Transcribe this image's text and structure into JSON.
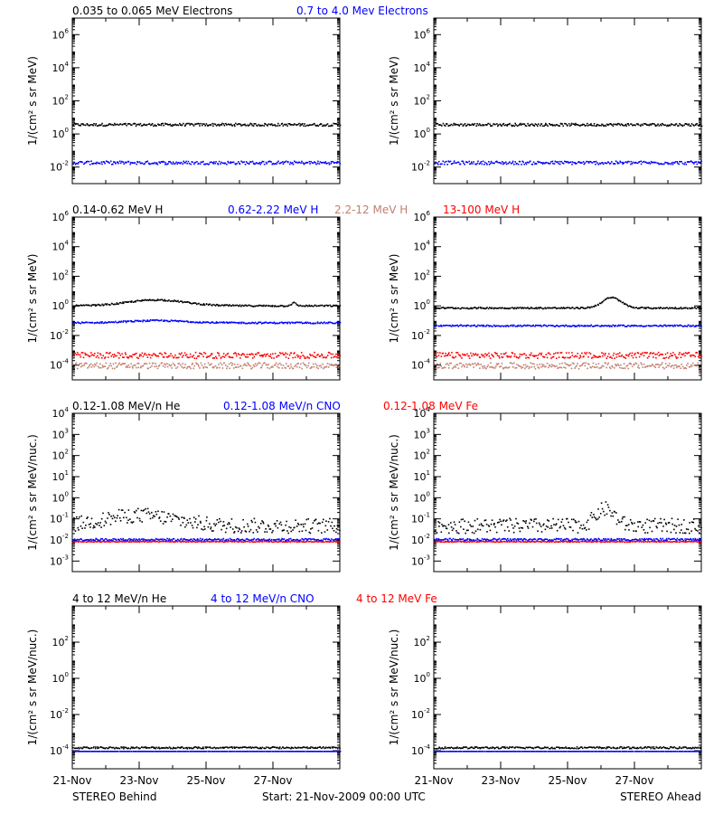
{
  "chart_data": [
    {
      "type": "scatter",
      "panel": "electrons-behind",
      "ylabel": "1/(cm² s sr MeV)",
      "yscale": "log",
      "ylim_exp": [
        -3,
        7
      ],
      "yticks_exp": [
        -2,
        0,
        2,
        4,
        6
      ],
      "legend": [
        {
          "text": "0.035 to 0.065 MeV Electrons",
          "color": "#000000"
        },
        {
          "text": "0.7 to 4.0 Mev Electrons",
          "color": "#0000ff"
        }
      ],
      "series": [
        {
          "color": "#000000",
          "base_exp": 0.6,
          "spread": 0.08,
          "bumps": []
        },
        {
          "color": "#0000ff",
          "base_exp": -1.7,
          "spread": 0.1,
          "bumps": []
        }
      ]
    },
    {
      "type": "scatter",
      "panel": "electrons-ahead",
      "ylabel": "1/(cm² s sr MeV)",
      "yscale": "log",
      "ylim_exp": [
        -3,
        7
      ],
      "yticks_exp": [
        -2,
        0,
        2,
        4,
        6
      ],
      "legend": [],
      "series": [
        {
          "color": "#000000",
          "base_exp": 0.6,
          "spread": 0.08,
          "bumps": []
        },
        {
          "color": "#0000ff",
          "base_exp": -1.7,
          "spread": 0.1,
          "bumps": []
        }
      ]
    },
    {
      "type": "scatter",
      "panel": "protons-behind",
      "ylabel": "1/(cm² s sr MeV)",
      "yscale": "log",
      "ylim_exp": [
        -5,
        6
      ],
      "yticks_exp": [
        -4,
        -2,
        0,
        2,
        4,
        6
      ],
      "legend": [
        {
          "text": "0.14-0.62 MeV H",
          "color": "#000000"
        },
        {
          "text": "0.62-2.22 MeV H",
          "color": "#0000ff"
        },
        {
          "text": "2.2-12 MeV H",
          "color": "#c08070"
        },
        {
          "text": "13-100 MeV H",
          "color": "#ff0000"
        }
      ],
      "series": [
        {
          "color": "#000000",
          "base_exp": 0.05,
          "spread": 0.05,
          "bumps": [
            {
              "day": 2.5,
              "width": 1.2,
              "amp": 0.4
            },
            {
              "day": 6.6,
              "width": 0.1,
              "amp": 0.2
            }
          ]
        },
        {
          "color": "#0000ff",
          "base_exp": -1.1,
          "spread": 0.05,
          "bumps": [
            {
              "day": 2.5,
              "width": 1.2,
              "amp": 0.15
            }
          ]
        },
        {
          "color": "#c08070",
          "base_exp": -4.0,
          "spread": 0.2,
          "bumps": []
        },
        {
          "color": "#ff0000",
          "base_exp": -3.3,
          "spread": 0.2,
          "bumps": []
        }
      ]
    },
    {
      "type": "scatter",
      "panel": "protons-ahead",
      "ylabel": "1/(cm² s sr MeV)",
      "yscale": "log",
      "ylim_exp": [
        -5,
        6
      ],
      "yticks_exp": [
        -4,
        -2,
        0,
        2,
        4,
        6
      ],
      "legend": [],
      "series": [
        {
          "color": "#000000",
          "base_exp": -0.1,
          "spread": 0.05,
          "bumps": [
            {
              "day": 5.3,
              "width": 0.4,
              "amp": 0.7
            }
          ]
        },
        {
          "color": "#0000ff",
          "base_exp": -1.3,
          "spread": 0.05,
          "bumps": []
        },
        {
          "color": "#c08070",
          "base_exp": -4.0,
          "spread": 0.2,
          "bumps": []
        },
        {
          "color": "#ff0000",
          "base_exp": -3.3,
          "spread": 0.2,
          "bumps": []
        }
      ]
    },
    {
      "type": "scatter",
      "panel": "heavy-behind",
      "ylabel": "1/(cm² s sr MeV/nuc.)",
      "yscale": "log",
      "ylim_exp": [
        -3.5,
        4
      ],
      "yticks_exp": [
        -3,
        -2,
        -1,
        0,
        1,
        2,
        3,
        4
      ],
      "legend": [
        {
          "text": "0.12-1.08 MeV/n He",
          "color": "#000000"
        },
        {
          "text": "0.12-1.08 MeV/n CNO",
          "color": "#0000ff"
        },
        {
          "text": "0.12-1.08 MeV Fe",
          "color": "#ff0000"
        }
      ],
      "series": [
        {
          "color": "#000000",
          "base_exp": -1.3,
          "spread": 0.35,
          "bumps": [
            {
              "day": 2.0,
              "width": 1.5,
              "amp": 0.5
            }
          ]
        },
        {
          "color": "#0000ff",
          "base_exp": -1.95,
          "spread": 0.05,
          "bumps": []
        },
        {
          "color": "#ff0000",
          "base_exp": -2.05,
          "spread": 0.02,
          "bumps": []
        }
      ]
    },
    {
      "type": "scatter",
      "panel": "heavy-ahead",
      "ylabel": "1/(cm² s sr MeV/nuc.)",
      "yscale": "log",
      "ylim_exp": [
        -3.5,
        4
      ],
      "yticks_exp": [
        -3,
        -2,
        -1,
        0,
        1,
        2,
        3,
        4
      ],
      "legend": [],
      "series": [
        {
          "color": "#000000",
          "base_exp": -1.3,
          "spread": 0.35,
          "bumps": [
            {
              "day": 5.1,
              "width": 0.4,
              "amp": 0.8
            }
          ]
        },
        {
          "color": "#0000ff",
          "base_exp": -1.95,
          "spread": 0.05,
          "bumps": []
        },
        {
          "color": "#ff0000",
          "base_exp": -2.05,
          "spread": 0.02,
          "bumps": []
        }
      ]
    },
    {
      "type": "scatter",
      "panel": "high-energy-behind",
      "ylabel": "1/(cm² s sr MeV/nuc.)",
      "yscale": "log",
      "ylim_exp": [
        -5,
        4
      ],
      "yticks_exp": [
        -4,
        -2,
        0,
        2
      ],
      "legend": [
        {
          "text": "4 to 12 MeV/n He",
          "color": "#000000"
        },
        {
          "text": "4 to 12 MeV/n CNO",
          "color": "#0000ff"
        },
        {
          "text": "4 to 12 MeV Fe",
          "color": "#ff0000"
        }
      ],
      "series": [
        {
          "color": "#000000",
          "base_exp": -3.8,
          "spread": 0.05,
          "bumps": []
        },
        {
          "color": "#0000ff",
          "base_exp": -4.0,
          "spread": 0.0,
          "bumps": []
        }
      ]
    },
    {
      "type": "scatter",
      "panel": "high-energy-ahead",
      "ylabel": "1/(cm² s sr MeV/nuc.)",
      "yscale": "log",
      "ylim_exp": [
        -5,
        4
      ],
      "yticks_exp": [
        -4,
        -2,
        0,
        2
      ],
      "legend": [],
      "series": [
        {
          "color": "#000000",
          "base_exp": -3.8,
          "spread": 0.05,
          "bumps": []
        },
        {
          "color": "#0000ff",
          "base_exp": -4.0,
          "spread": 0.0,
          "bumps": []
        }
      ]
    }
  ],
  "x_axis": {
    "start_date": "21-Nov-2009",
    "span_days": 8,
    "tick_labels": [
      "21-Nov",
      "23-Nov",
      "25-Nov",
      "27-Nov"
    ],
    "tick_days": [
      0,
      2,
      4,
      6
    ]
  },
  "footer": {
    "left": "STEREO Behind",
    "center": "Start: 21-Nov-2009 00:00 UTC",
    "right": "STEREO Ahead"
  }
}
